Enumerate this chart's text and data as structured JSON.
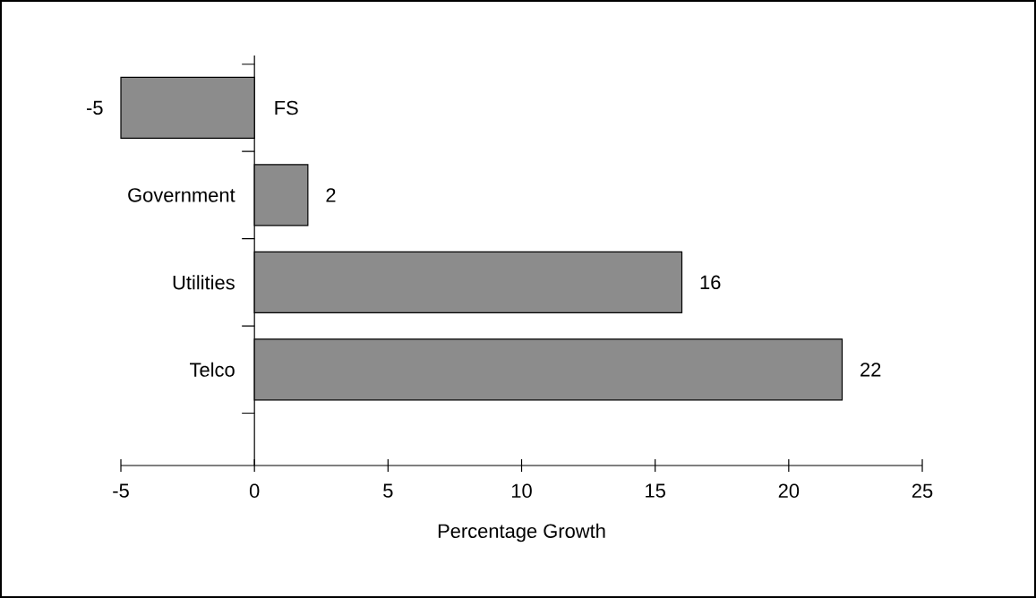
{
  "chart_data": {
    "type": "bar",
    "orientation": "horizontal",
    "xlabel": "Percentage Growth",
    "categories": [
      "FS",
      "Government",
      "Utilities",
      "Telco"
    ],
    "values": [
      -5,
      2,
      16,
      22
    ],
    "color": "#8c8c8c",
    "xlim": [
      -5,
      25
    ],
    "xticks": [
      -5,
      0,
      5,
      10,
      15,
      20,
      25
    ],
    "data_labels": true,
    "grid": false
  }
}
